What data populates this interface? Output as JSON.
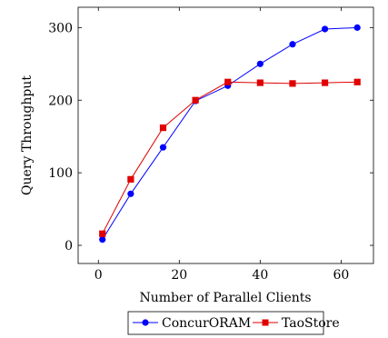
{
  "chart_data": {
    "type": "line",
    "xlabel": "Number of Parallel Clients",
    "ylabel": "Query Throughput",
    "xlim": [
      -5,
      68
    ],
    "ylim": [
      -25,
      328
    ],
    "xticks": [
      0,
      20,
      40,
      60
    ],
    "yticks": [
      0,
      100,
      200,
      300
    ],
    "grid": false,
    "legend_position": "bottom-center",
    "series": [
      {
        "name": "ConcurORAM",
        "color": "#0000ff",
        "marker": "circle",
        "x": [
          1,
          8,
          16,
          24,
          32,
          40,
          48,
          56,
          64
        ],
        "y": [
          8,
          71,
          135,
          199,
          220,
          250,
          277,
          298,
          300
        ]
      },
      {
        "name": "TaoStore",
        "color": "#e00000",
        "marker": "square",
        "x": [
          1,
          8,
          16,
          24,
          32,
          40,
          48,
          56,
          64
        ],
        "y": [
          16,
          91,
          162,
          200,
          225,
          224,
          223,
          224,
          225
        ]
      }
    ]
  }
}
